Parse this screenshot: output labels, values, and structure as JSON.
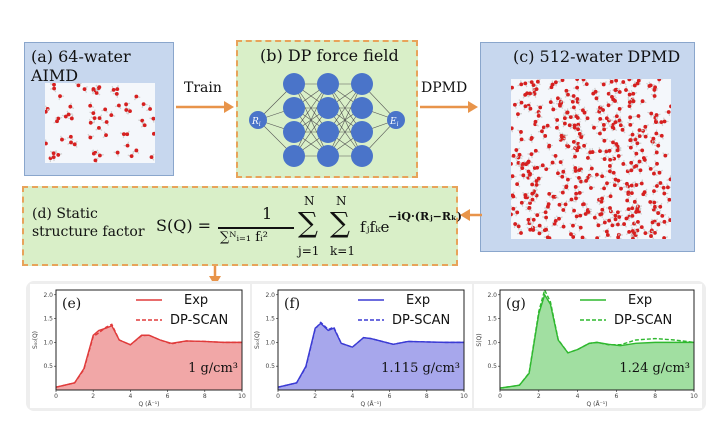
{
  "panels": {
    "a": {
      "title": "(a) 64-water AIMD"
    },
    "b": {
      "title": "(b) DP force field",
      "input_label": "R",
      "input_sub": "i",
      "output_label": "E",
      "output_sub": "i"
    },
    "c": {
      "title": "(c) 512-water DPMD"
    },
    "d": {
      "title_line1": "(d) Static",
      "title_line2": "structure factor"
    }
  },
  "arrows": {
    "train": "Train",
    "dpmd": "DPMD"
  },
  "formula": {
    "lhs": "S(Q) =",
    "numerator": "1",
    "denominator": "∑ᴺᵢ₌₁ fᵢ²",
    "sum_top": "N",
    "sum1_bottom": "j=1",
    "sum2_bottom": "k=1",
    "term": "fⱼfₖe",
    "exponent": "−iQ·(Rⱼ−Rₖ)"
  },
  "colors": {
    "red": "#e03b3b",
    "blue": "#3b3bd4",
    "green": "#2fb82f",
    "node": "#4a74c9",
    "arrow": "#e8944a"
  },
  "plots": [
    {
      "label": "(e)",
      "density": "1 g/cm³",
      "ylabel": "S₀₀(Q)",
      "xlabel": "Q (Å⁻¹)",
      "legend": [
        "Exp",
        "DP-SCAN"
      ]
    },
    {
      "label": "(f)",
      "density": "1.115 g/cm³",
      "ylabel": "S₀₀(Q)",
      "xlabel": "Q (Å⁻¹)",
      "legend": [
        "Exp",
        "DP-SCAN"
      ]
    },
    {
      "label": "(g)",
      "density": "1.24 g/cm³",
      "ylabel": "S(Q)",
      "xlabel": "Q (Å⁻¹)",
      "legend": [
        "Exp",
        "DP-SCAN"
      ]
    }
  ],
  "chart_data": [
    {
      "type": "area",
      "xlim": [
        0,
        10
      ],
      "ylim": [
        0,
        2.1
      ],
      "xticks": [
        0,
        2,
        4,
        6,
        8,
        10
      ],
      "yticks": [
        0.5,
        1.0,
        1.5,
        2.0
      ],
      "series": [
        {
          "name": "Exp",
          "x": [
            0,
            1,
            1.5,
            2,
            2.3,
            2.7,
            3,
            3.4,
            4,
            4.6,
            5,
            5.6,
            6.2,
            7,
            8,
            9,
            10
          ],
          "values": [
            0.06,
            0.15,
            0.45,
            1.15,
            1.25,
            1.3,
            1.35,
            1.05,
            0.95,
            1.15,
            1.15,
            1.05,
            0.98,
            1.03,
            1.02,
            1.0,
            1.0
          ]
        },
        {
          "name": "DP-SCAN",
          "x": [
            0,
            1,
            1.5,
            2,
            2.3,
            2.7,
            3,
            3.4,
            4,
            4.6,
            5,
            5.6,
            6.2,
            7,
            8,
            9,
            10
          ],
          "values": [
            0.06,
            0.15,
            0.43,
            1.12,
            1.2,
            1.32,
            1.38,
            1.05,
            0.95,
            1.14,
            1.15,
            1.05,
            0.97,
            1.03,
            1.02,
            1.0,
            1.0
          ]
        }
      ]
    },
    {
      "type": "area",
      "xlim": [
        0,
        10
      ],
      "ylim": [
        0,
        2.1
      ],
      "xticks": [
        0,
        2,
        4,
        6,
        8,
        10
      ],
      "yticks": [
        0.5,
        1.0,
        1.5,
        2.0
      ],
      "series": [
        {
          "name": "Exp",
          "x": [
            0,
            1,
            1.5,
            2,
            2.3,
            2.7,
            3,
            3.4,
            4,
            4.6,
            5,
            5.6,
            6.2,
            7,
            8,
            9,
            10
          ],
          "values": [
            0.06,
            0.15,
            0.5,
            1.3,
            1.4,
            1.25,
            1.3,
            0.98,
            0.9,
            1.1,
            1.08,
            1.02,
            0.96,
            1.02,
            1.01,
            1.0,
            1.0
          ]
        },
        {
          "name": "DP-SCAN",
          "x": [
            0,
            1,
            1.5,
            2,
            2.3,
            2.7,
            3,
            3.4,
            4,
            4.6,
            5,
            5.6,
            6.2,
            7,
            8,
            9,
            10
          ],
          "values": [
            0.06,
            0.15,
            0.48,
            1.28,
            1.42,
            1.27,
            1.32,
            0.98,
            0.9,
            1.1,
            1.08,
            1.02,
            0.96,
            1.02,
            1.01,
            1.0,
            1.0
          ]
        }
      ]
    },
    {
      "type": "area",
      "xlim": [
        0,
        10
      ],
      "ylim": [
        0,
        2.1
      ],
      "xticks": [
        0,
        2,
        4,
        6,
        8,
        10
      ],
      "yticks": [
        0.5,
        1.0,
        1.5,
        2.0
      ],
      "series": [
        {
          "name": "Exp",
          "x": [
            0,
            1,
            1.5,
            2,
            2.3,
            2.6,
            3,
            3.5,
            4,
            4.6,
            5,
            5.6,
            6.2,
            7,
            8,
            9,
            10
          ],
          "values": [
            0.04,
            0.1,
            0.35,
            1.6,
            2.0,
            1.8,
            1.05,
            0.78,
            0.85,
            0.98,
            1.0,
            0.96,
            0.93,
            0.98,
            1.0,
            1.0,
            1.0
          ]
        },
        {
          "name": "DP-SCAN",
          "x": [
            0,
            1,
            1.5,
            2,
            2.3,
            2.6,
            3,
            3.5,
            4,
            4.6,
            5,
            5.6,
            6.2,
            7,
            8,
            9,
            10
          ],
          "values": [
            0.04,
            0.1,
            0.36,
            1.65,
            2.1,
            1.85,
            1.06,
            0.78,
            0.85,
            0.98,
            1.0,
            0.95,
            0.95,
            1.05,
            1.08,
            1.05,
            1.0
          ]
        }
      ]
    }
  ]
}
